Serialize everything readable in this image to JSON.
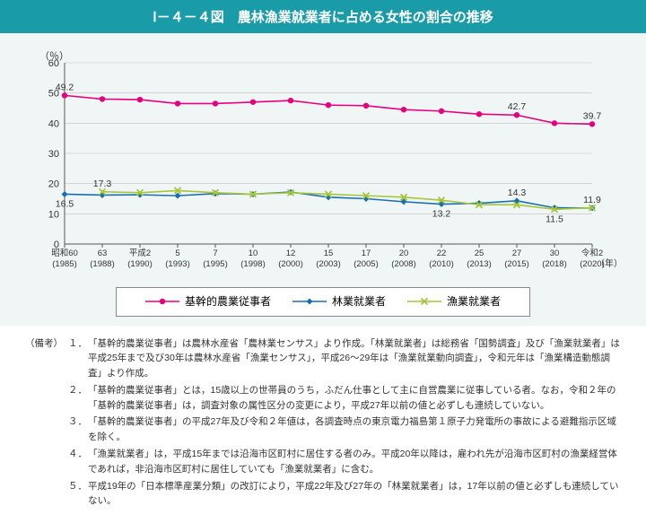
{
  "title": "Ⅰ－４－４図　農林漁業就業者に占める女性の割合の推移",
  "chart": {
    "type": "line",
    "y_unit": "（％）",
    "x_unit": "（年）",
    "ylim": [
      0,
      60
    ],
    "ytick_step": 10,
    "background_color": "#f0f6f6",
    "grid_color": "#bfbfbf",
    "axis_color": "#555555",
    "x_labels_top": [
      "昭和60",
      "63",
      "平成2",
      "5",
      "7",
      "10",
      "12",
      "15",
      "17",
      "20",
      "22",
      "25",
      "27",
      "30",
      "令和2"
    ],
    "x_labels_bottom": [
      "(1985)",
      "(1988)",
      "(1990)",
      "(1993)",
      "(1995)",
      "(1998)",
      "(2000)",
      "(2003)",
      "(2005)",
      "(2008)",
      "(2010)",
      "(2013)",
      "(2015)",
      "(2018)",
      "(2020)"
    ],
    "series": [
      {
        "name": "基幹的農業従事者",
        "color": "#e6007e",
        "marker": "circle",
        "values": [
          49.2,
          48.0,
          47.8,
          46.5,
          46.5,
          47.0,
          47.5,
          46.0,
          45.8,
          44.5,
          44.0,
          43.0,
          42.7,
          40.0,
          39.7
        ],
        "callouts": [
          {
            "i": 0,
            "v": "49.2"
          },
          {
            "i": 12,
            "v": "42.7"
          },
          {
            "i": 14,
            "v": "39.7"
          }
        ]
      },
      {
        "name": "林業就業者",
        "color": "#1a6fb0",
        "marker": "diamond",
        "values": [
          16.5,
          16.2,
          16.3,
          16.0,
          16.7,
          16.5,
          17.2,
          15.5,
          15.0,
          14.0,
          13.2,
          13.5,
          14.3,
          12.0,
          11.9
        ],
        "callouts": [
          {
            "i": 0,
            "v": "16.5",
            "pos": "below"
          },
          {
            "i": 10,
            "v": "13.2",
            "pos": "below"
          },
          {
            "i": 12,
            "v": "14.3"
          },
          {
            "i": 14,
            "v": "11.9"
          }
        ]
      },
      {
        "name": "漁業就業者",
        "color": "#a6c63c",
        "marker": "x",
        "values": [
          null,
          17.3,
          17.0,
          17.7,
          17.0,
          16.5,
          17.0,
          16.5,
          16.0,
          15.5,
          14.5,
          13.0,
          13.0,
          11.5,
          12.0
        ],
        "callouts": [
          {
            "i": 1,
            "v": "17.3"
          },
          {
            "i": 13,
            "v": "11.5",
            "pos": "below"
          }
        ]
      }
    ]
  },
  "legend": {
    "items": [
      "基幹的農業従事者",
      "林業就業者",
      "漁業就業者"
    ]
  },
  "notes_label": "（備考）",
  "notes": [
    {
      "num": "１．",
      "text": "「基幹的農業従事者」は農林水産省「農林業センサス」より作成。「林業就業者」は総務省「国勢調査」及び「漁業就業者」は平成25年まで及び30年は農林水産省「漁業センサス」，平成26～29年は「漁業就業動向調査」，令和元年は「漁業構造動態調査」より作成。"
    },
    {
      "num": "２．",
      "text": "「基幹的農業従事者」とは，15歳以上の世帯員のうち，ふだん仕事として主に自営農業に従事している者。なお，令和２年の「基幹的農業従事者」は，調査対象の属性区分の変更により，平成27年以前の値と必ずしも連続していない。"
    },
    {
      "num": "３．",
      "text": "「基幹的農業従事者」の平成27年及び令和２年値は，各調査時点の東京電力福島第１原子力発電所の事故による避難指示区域を除く。"
    },
    {
      "num": "４．",
      "text": "「漁業就業者」は，平成15年までは沿海市区町村に居住する者のみ。平成20年以降は，雇われ先が沿海市区町村の漁業経営体であれば，非沿海市区町村に居住していても「漁業就業者」に含む。"
    },
    {
      "num": "５．",
      "text": "平成19年の「日本標準産業分類」の改訂により，平成22年及び27年の「林業就業者」は，17年以前の値と必ずしも連続していない。"
    }
  ]
}
